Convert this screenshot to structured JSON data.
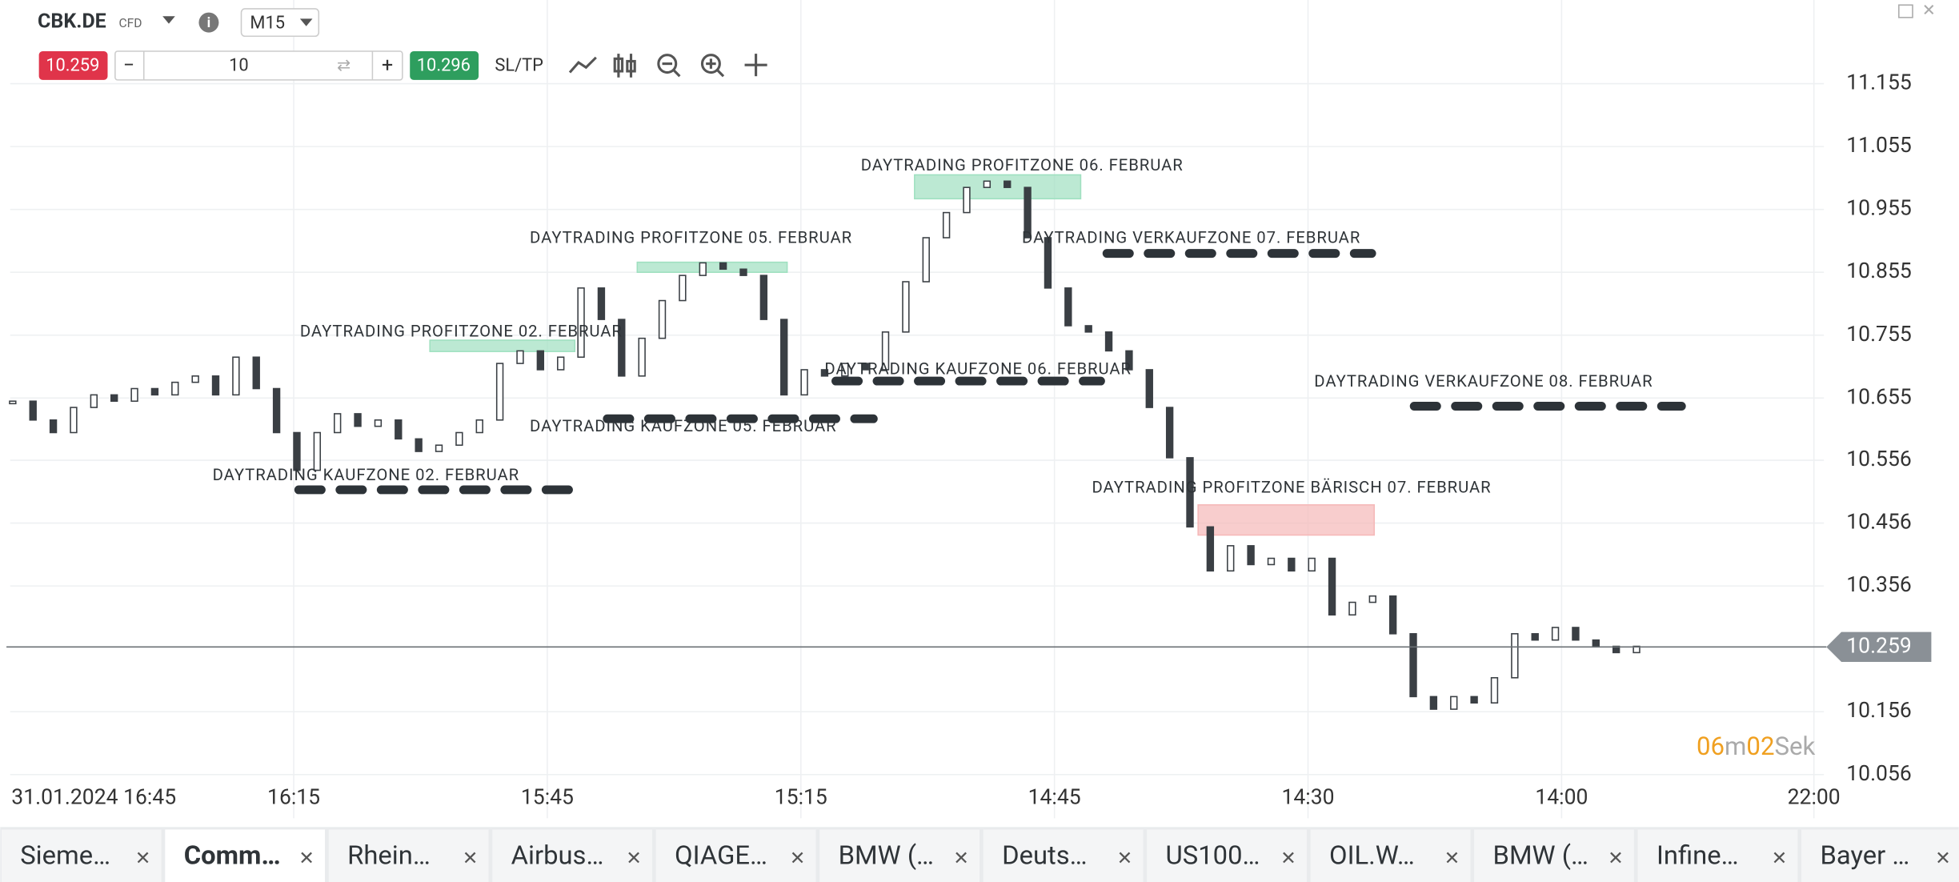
{
  "toolbar": {
    "symbol": "CBK.DE",
    "symbol_type": "CFD",
    "timeframe": "M15",
    "sell_price": "10.259",
    "volume": "10",
    "buy_price": "10.296",
    "sltp": "SL/TP"
  },
  "chart_data": {
    "type": "candlestick",
    "closes": [
      10.65,
      10.62,
      10.6,
      10.64,
      10.66,
      10.65,
      10.67,
      10.66,
      10.68,
      10.69,
      10.66,
      10.72,
      10.67,
      10.6,
      10.54,
      10.6,
      10.63,
      10.61,
      10.62,
      10.59,
      10.57,
      10.58,
      10.6,
      10.62,
      10.71,
      10.73,
      10.7,
      10.72,
      10.83,
      10.78,
      10.69,
      10.75,
      10.81,
      10.85,
      10.87,
      10.86,
      10.85,
      10.78,
      10.66,
      10.7,
      10.69,
      10.71,
      10.7,
      10.76,
      10.84,
      10.91,
      10.95,
      10.99,
      11.0,
      10.99,
      10.91,
      10.83,
      10.77,
      10.76,
      10.73,
      10.7,
      10.64,
      10.56,
      10.45,
      10.38,
      10.42,
      10.39,
      10.4,
      10.38,
      10.4,
      10.31,
      10.33,
      10.34,
      10.28,
      10.18,
      10.16,
      10.18,
      10.17,
      10.21,
      10.28,
      10.27,
      10.29,
      10.27,
      10.26,
      10.25,
      10.26
    ],
    "ylim": [
      10.056,
      11.155
    ],
    "yticks": [
      11.155,
      11.055,
      10.955,
      10.855,
      10.755,
      10.655,
      10.556,
      10.456,
      10.356,
      10.156,
      10.056
    ],
    "xticks": [
      "31.01.2024 16:45",
      "16:15",
      "15:45",
      "15:15",
      "14:45",
      "14:30",
      "14:00",
      "22:00"
    ],
    "grid": true,
    "current_price": 10.259,
    "zones": [
      {
        "label": "DAYTRADING KAUFZONE 02. FEBRUAR",
        "kind": "line",
        "price": 10.509
      },
      {
        "label": "DAYTRADING PROFITZONE 02. FEBRUAR",
        "kind": "box",
        "top": 10.747,
        "bottom": 10.729,
        "color": "#9fe0c0"
      },
      {
        "label": "DAYTRADING KAUFZONE 05. FEBRUAR",
        "kind": "line",
        "price": 10.622
      },
      {
        "label": "DAYTRADING PROFITZONE 05. FEBRUAR",
        "kind": "box",
        "top": 10.871,
        "bottom": 10.855,
        "color": "#9fe0c0"
      },
      {
        "label": "DAYTRADING PROFITZONE 06. FEBRUAR",
        "kind": "box",
        "top": 11.01,
        "bottom": 10.972,
        "color": "#9fe0c0"
      },
      {
        "label": "DAYTRADING KAUFZONE 06. FEBRUAR",
        "kind": "line",
        "price": 10.682
      },
      {
        "label": "DAYTRADING VERKAUFZONE 07. FEBRUAR",
        "kind": "line",
        "price": 10.885
      },
      {
        "label": "DAYTRADING VERKAUFZONE 08. FEBRUAR",
        "kind": "line",
        "price": 10.642
      },
      {
        "label": "DAYTRADING PROFITZONE BÄRISCH 07. FEBRUAR",
        "kind": "box",
        "top": 10.485,
        "bottom": 10.437,
        "color": "#f5b8b8"
      }
    ],
    "countdown": {
      "minutes": "06",
      "minutes_unit": "m",
      "seconds": "02",
      "seconds_unit": "Sek"
    }
  },
  "tabs": [
    "Sieme…",
    "Comm…",
    "Rhein…",
    "Airbus…",
    "QIAGE…",
    "BMW (…",
    "Deuts…",
    "US100…",
    "OIL.W…",
    "BMW (…",
    "Infine…",
    "Bayer …"
  ],
  "active_tab": 1
}
